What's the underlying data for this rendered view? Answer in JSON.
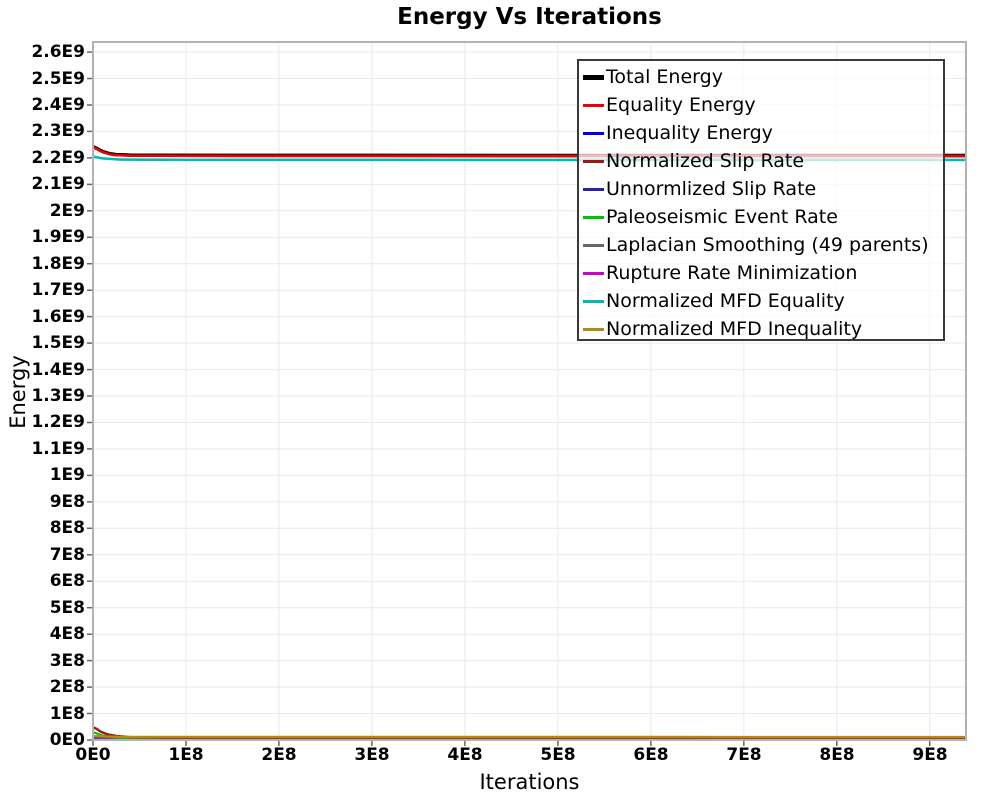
{
  "title": "Energy Vs Iterations",
  "chart_data": {
    "type": "line",
    "title": "Energy Vs Iterations",
    "xlabel": "Iterations",
    "ylabel": "Energy",
    "xlim": [
      0,
      939000000.0
    ],
    "ylim": [
      0,
      2638000000.0
    ],
    "grid": true,
    "legend_position": "top-right",
    "x_tick_labels": [
      "0E0",
      "1E8",
      "2E8",
      "3E8",
      "4E8",
      "5E8",
      "6E8",
      "7E8",
      "8E8",
      "9E8"
    ],
    "x_tick_values": [
      0,
      100000000.0,
      200000000.0,
      300000000.0,
      400000000.0,
      500000000.0,
      600000000.0,
      700000000.0,
      800000000.0,
      900000000.0
    ],
    "y_tick_labels": [
      "0E0",
      "1E8",
      "2E8",
      "3E8",
      "4E8",
      "5E8",
      "6E8",
      "7E8",
      "8E8",
      "9E8",
      "1E9",
      "1.1E9",
      "1.2E9",
      "1.3E9",
      "1.4E9",
      "1.5E9",
      "1.6E9",
      "1.7E9",
      "1.8E9",
      "1.9E9",
      "2E9",
      "2.1E9",
      "2.2E9",
      "2.3E9",
      "2.4E9",
      "2.5E9",
      "2.6E9"
    ],
    "y_tick_values": [
      0,
      100000000.0,
      200000000.0,
      300000000.0,
      400000000.0,
      500000000.0,
      600000000.0,
      700000000.0,
      800000000.0,
      900000000.0,
      1000000000.0,
      1100000000.0,
      1200000000.0,
      1300000000.0,
      1400000000.0,
      1500000000.0,
      1600000000.0,
      1700000000.0,
      1800000000.0,
      1900000000.0,
      2000000000.0,
      2100000000.0,
      2200000000.0,
      2300000000.0,
      2400000000.0,
      2500000000.0,
      2600000000.0
    ],
    "colors": {
      "grid": "#e9e9e9",
      "plot_border": "#b3b3b3",
      "tick_mark": "#666666",
      "legend_border": "#3a3a3a"
    },
    "series": [
      {
        "name": "Total Energy",
        "color": "#000000",
        "line_width": 3.5,
        "swatch_height": 5,
        "z": 9,
        "points": [
          [
            0,
            2243000000.0
          ],
          [
            4000000.0,
            2236000000.0
          ],
          [
            8000000.0,
            2228000000.0
          ],
          [
            12000000.0,
            2222000000.0
          ],
          [
            18000000.0,
            2216000000.0
          ],
          [
            25000000.0,
            2212500000.0
          ],
          [
            40000000.0,
            2210500000.0
          ],
          [
            70000000.0,
            2210000000.0
          ],
          [
            150000000.0,
            2209500000.0
          ],
          [
            939000000.0,
            2209000000.0
          ]
        ]
      },
      {
        "name": "Equality Energy",
        "color": "#ee0000",
        "line_width": 2.5,
        "swatch_height": 3,
        "z": 10,
        "points": [
          [
            0,
            2241000000.0
          ],
          [
            4000000.0,
            2234000000.0
          ],
          [
            8000000.0,
            2226000000.0
          ],
          [
            12000000.0,
            2220000000.0
          ],
          [
            18000000.0,
            2214000000.0
          ],
          [
            25000000.0,
            2210500000.0
          ],
          [
            40000000.0,
            2208500000.0
          ],
          [
            70000000.0,
            2208000000.0
          ],
          [
            150000000.0,
            2207500000.0
          ],
          [
            939000000.0,
            2207000000.0
          ]
        ]
      },
      {
        "name": "Inequality Energy",
        "color": "#0000dd",
        "line_width": 2.2,
        "swatch_height": 3,
        "z": 1,
        "points": [
          [
            0,
            9000000.0
          ],
          [
            20000000.0,
            4000000.0
          ],
          [
            60000000.0,
            2500000.0
          ],
          [
            939000000.0,
            2500000.0
          ]
        ]
      },
      {
        "name": "Normalized Slip Rate",
        "color": "#9b1b1b",
        "line_width": 2.5,
        "swatch_height": 3,
        "z": 6,
        "points": [
          [
            0,
            48000000.0
          ],
          [
            4000000.0,
            42000000.0
          ],
          [
            8000000.0,
            32000000.0
          ],
          [
            15000000.0,
            22000000.0
          ],
          [
            25000000.0,
            15000000.0
          ],
          [
            40000000.0,
            10500000.0
          ],
          [
            80000000.0,
            8500000.0
          ],
          [
            200000000.0,
            8000000.0
          ],
          [
            939000000.0,
            8000000.0
          ]
        ]
      },
      {
        "name": "Unnormlized Slip Rate",
        "color": "#26269c",
        "line_width": 2,
        "swatch_height": 3,
        "z": 2,
        "points": [
          [
            0,
            5000000.0
          ],
          [
            30000000.0,
            3000000.0
          ],
          [
            939000000.0,
            3000000.0
          ]
        ]
      },
      {
        "name": "Paleoseismic Event Rate",
        "color": "#00c400",
        "line_width": 2.2,
        "swatch_height": 3,
        "z": 5,
        "points": [
          [
            0,
            30000000.0
          ],
          [
            6000000.0,
            22000000.0
          ],
          [
            12000000.0,
            15000000.0
          ],
          [
            25000000.0,
            9000000.0
          ],
          [
            50000000.0,
            6000000.0
          ],
          [
            150000000.0,
            5000000.0
          ],
          [
            939000000.0,
            5000000.0
          ]
        ]
      },
      {
        "name": "Laplacian Smoothing (49 parents)",
        "color": "#676767",
        "line_width": 2,
        "swatch_height": 3,
        "z": 3,
        "points": [
          [
            0,
            3000000.0
          ],
          [
            939000000.0,
            2000000.0
          ]
        ]
      },
      {
        "name": "Rupture Rate Minimization",
        "color": "#cb00cb",
        "line_width": 2,
        "swatch_height": 3,
        "z": 4,
        "points": [
          [
            0,
            1500000.0
          ],
          [
            939000000.0,
            1200000.0
          ]
        ]
      },
      {
        "name": "Normalized MFD Equality",
        "color": "#00b9b9",
        "line_width": 2.5,
        "swatch_height": 3,
        "z": 8,
        "points": [
          [
            0,
            2205000000.0
          ],
          [
            10000000.0,
            2198000000.0
          ],
          [
            30000000.0,
            2193500000.0
          ],
          [
            100000000.0,
            2192500000.0
          ],
          [
            939000000.0,
            2192000000.0
          ]
        ]
      },
      {
        "name": "Normalized MFD Inequality",
        "color": "#b3891d",
        "line_width": 2.5,
        "swatch_height": 3,
        "z": 7,
        "points": [
          [
            0,
            14000000.0
          ],
          [
            30000000.0,
            11500000.0
          ],
          [
            939000000.0,
            11000000.0
          ]
        ]
      }
    ]
  }
}
